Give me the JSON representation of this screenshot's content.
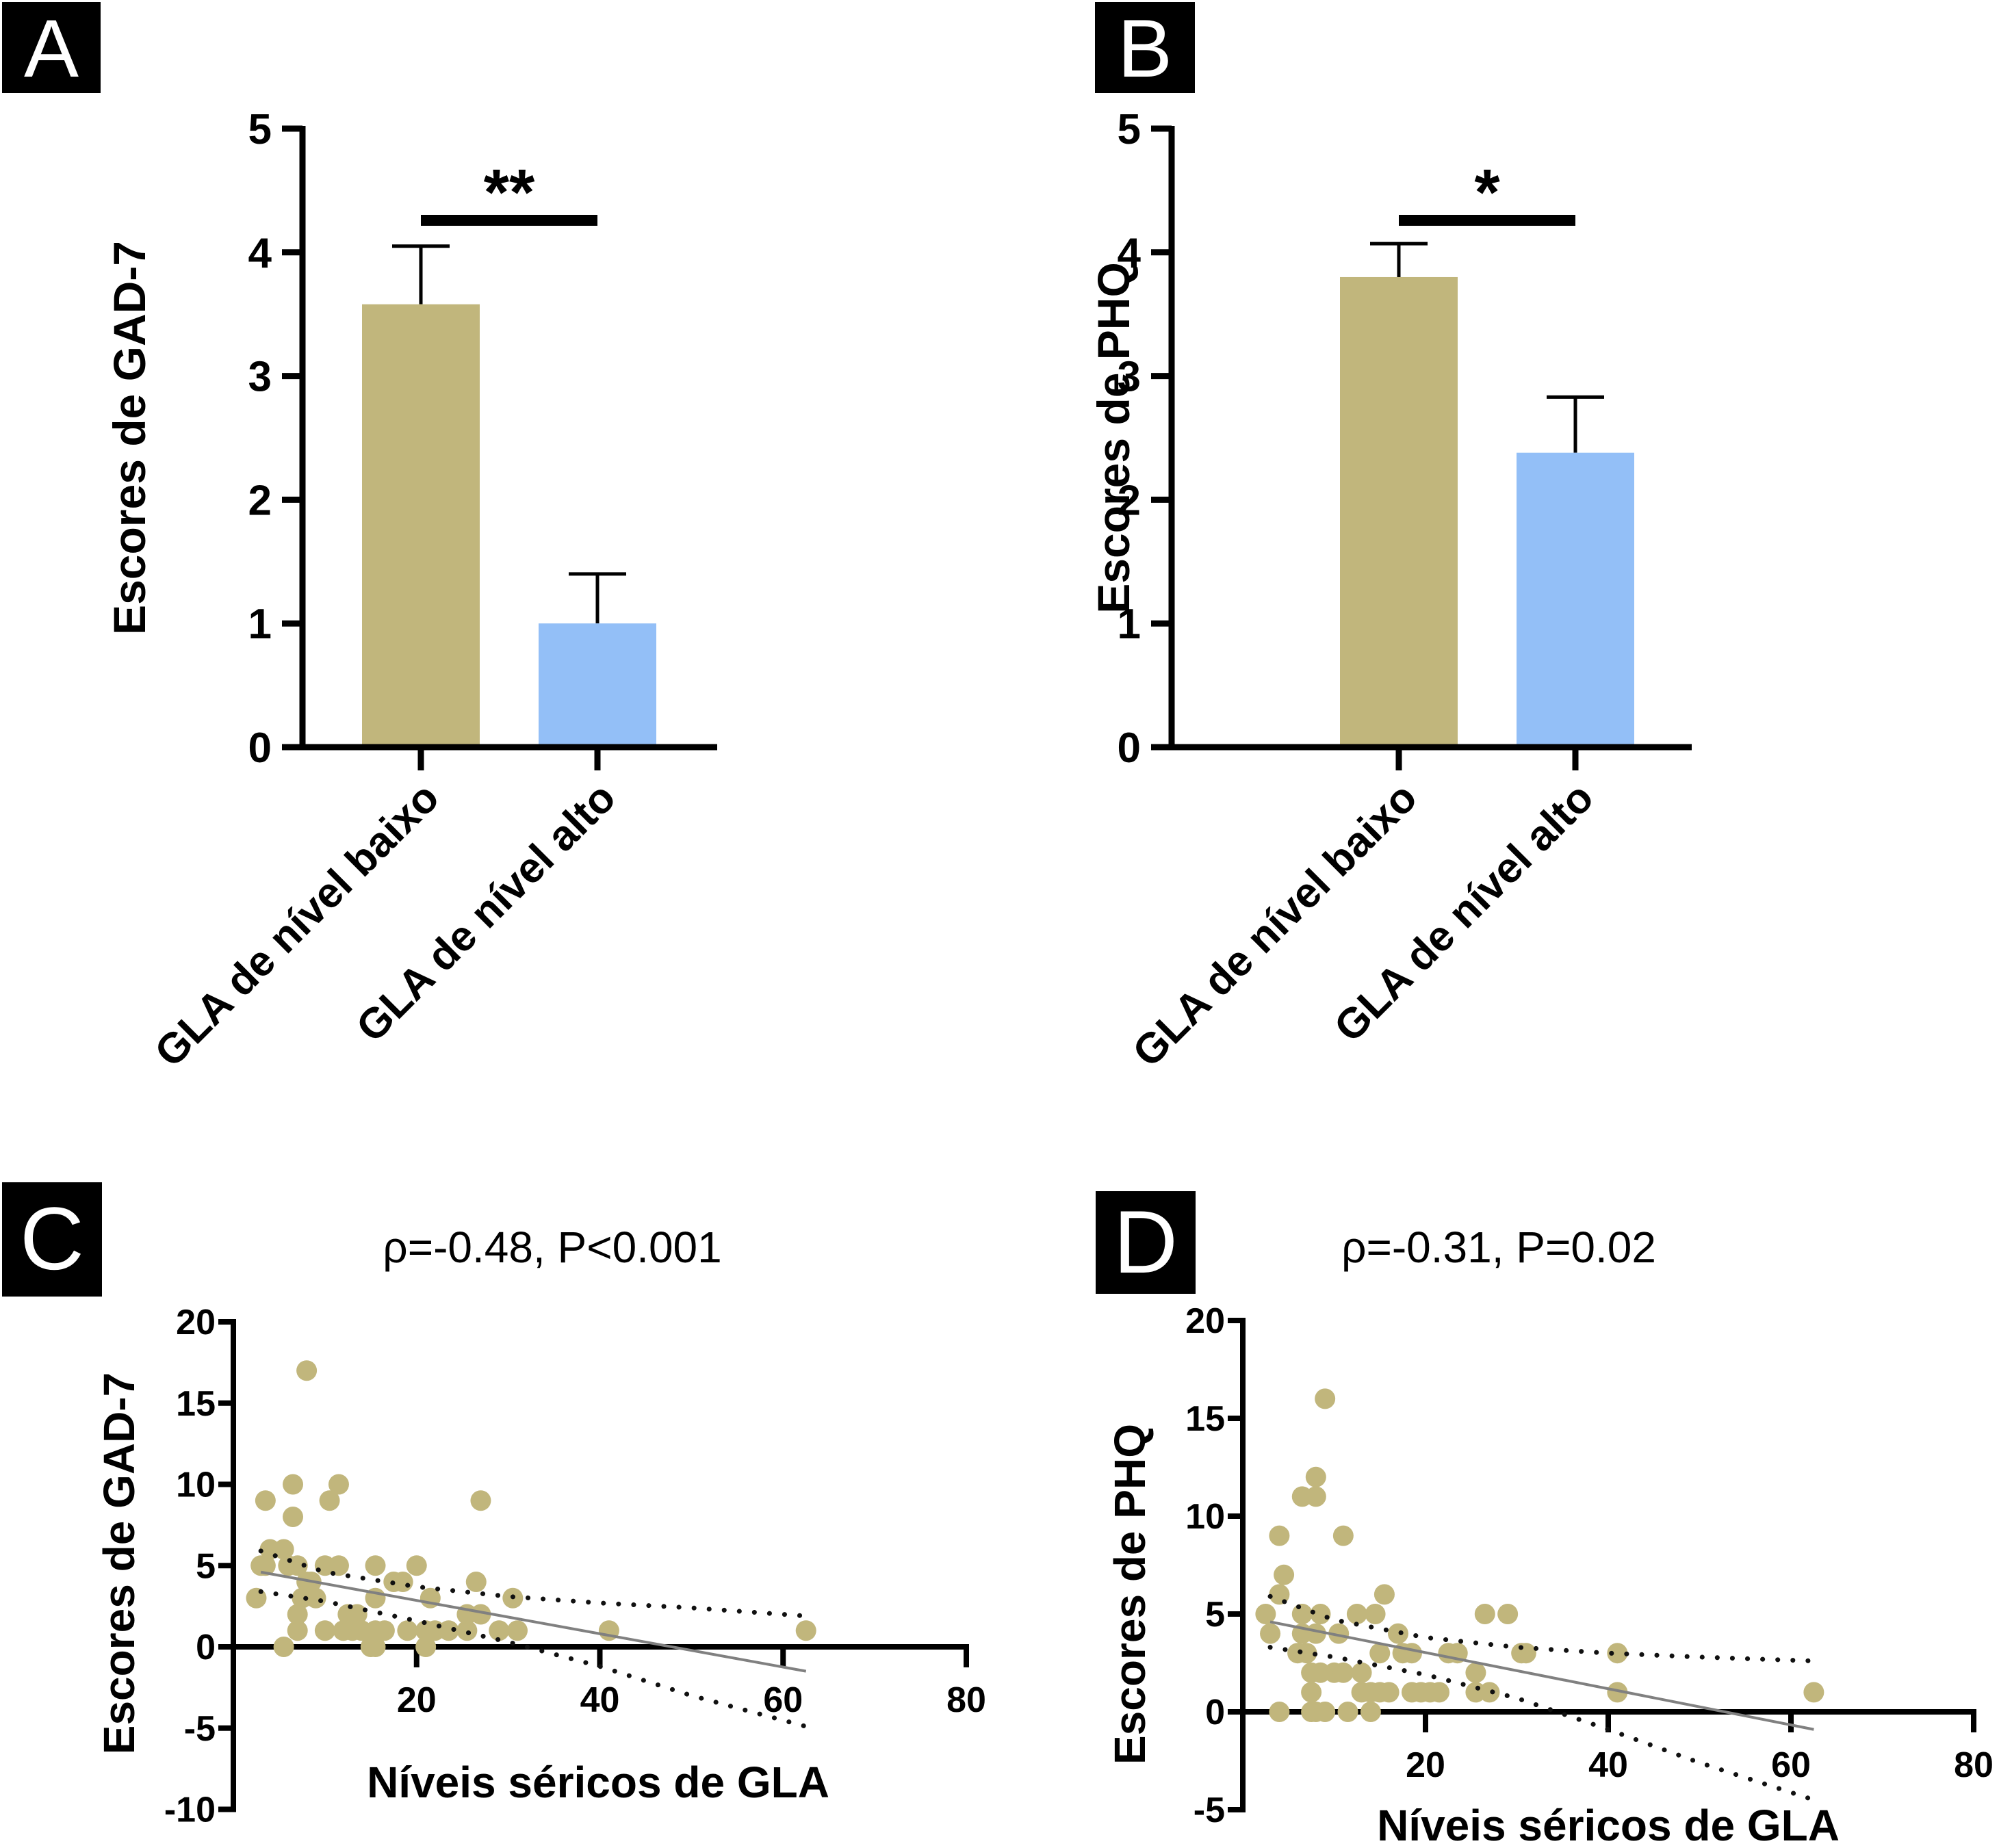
{
  "colors": {
    "low_group": "#c1b67c",
    "high_group": "#93bff7",
    "points": "#c1b67c",
    "fit_line": "#808080",
    "ci_dots": "#111111",
    "axis": "#000000"
  },
  "chart_data": [
    {
      "panel": "A",
      "type": "bar",
      "title": "",
      "ylabel": "Escores de GAD-7",
      "xlabel": "",
      "categories": [
        "GLA de nível baixo",
        "GLA de nível alto"
      ],
      "values": [
        3.58,
        1.0
      ],
      "error_upper": [
        4.05,
        1.4
      ],
      "ylim": [
        0,
        5
      ],
      "yticks": [
        "0",
        "1",
        "2",
        "3",
        "4",
        "5"
      ],
      "significance": {
        "label": "**",
        "between": [
          0,
          1
        ]
      },
      "grid": false
    },
    {
      "panel": "B",
      "type": "bar",
      "title": "",
      "ylabel": "Escores de PHQ",
      "xlabel": "",
      "categories": [
        "GLA de nível baixo",
        "GLA de nível alto"
      ],
      "values": [
        3.8,
        2.38
      ],
      "error_upper": [
        4.07,
        2.83
      ],
      "ylim": [
        0,
        5
      ],
      "yticks": [
        "0",
        "1",
        "2",
        "3",
        "4",
        "5"
      ],
      "significance": {
        "label": "*",
        "between": [
          0,
          1
        ]
      },
      "grid": false
    },
    {
      "panel": "C",
      "type": "scatter",
      "title": "ρ=-0.48, P<0.001",
      "ylabel": "Escores de GAD-7",
      "xlabel": "Níveis séricos de GLA",
      "xlim": [
        0,
        80
      ],
      "ylim": [
        -10,
        20
      ],
      "xticks": [
        "20",
        "40",
        "60",
        "80"
      ],
      "yticks": [
        "20",
        "15",
        "10",
        "5",
        "0",
        "-5",
        "-10"
      ],
      "points": [
        [
          8,
          17
        ],
        [
          6.5,
          10
        ],
        [
          11.5,
          10
        ],
        [
          3.5,
          9
        ],
        [
          10.5,
          9
        ],
        [
          27,
          9
        ],
        [
          6.5,
          8
        ],
        [
          4,
          6
        ],
        [
          5.5,
          6
        ],
        [
          3,
          5
        ],
        [
          3.5,
          5
        ],
        [
          6,
          5
        ],
        [
          7,
          5
        ],
        [
          10,
          5
        ],
        [
          11.5,
          5
        ],
        [
          15.5,
          5
        ],
        [
          20,
          5
        ],
        [
          8,
          4
        ],
        [
          17.5,
          4
        ],
        [
          18.5,
          4
        ],
        [
          26.5,
          4
        ],
        [
          8.5,
          4
        ],
        [
          2.5,
          3
        ],
        [
          7.5,
          3
        ],
        [
          9,
          3
        ],
        [
          15.5,
          3
        ],
        [
          21.5,
          3
        ],
        [
          30.5,
          3
        ],
        [
          7,
          2
        ],
        [
          12.5,
          2
        ],
        [
          13.5,
          2
        ],
        [
          25.5,
          2
        ],
        [
          27,
          2
        ],
        [
          7,
          1
        ],
        [
          10,
          1
        ],
        [
          12,
          1
        ],
        [
          13,
          1
        ],
        [
          14,
          1
        ],
        [
          15.5,
          1
        ],
        [
          16.5,
          1
        ],
        [
          19,
          1
        ],
        [
          21,
          1
        ],
        [
          22,
          1
        ],
        [
          23.5,
          1
        ],
        [
          25.5,
          1
        ],
        [
          29,
          1
        ],
        [
          31,
          1
        ],
        [
          41,
          1
        ],
        [
          62.5,
          1
        ],
        [
          5.5,
          0
        ],
        [
          15,
          0
        ],
        [
          15.5,
          0
        ],
        [
          21,
          0
        ]
      ],
      "fit_line": {
        "x": [
          3,
          62.5
        ],
        "y": [
          4.6,
          -1.5
        ]
      },
      "ci_upper": {
        "x": [
          3,
          10,
          20,
          30,
          40,
          50,
          62.5
        ],
        "y": [
          5.9,
          4.6,
          3.7,
          3.1,
          2.7,
          2.4,
          1.9
        ]
      },
      "ci_lower": {
        "x": [
          3,
          10,
          20,
          30,
          40,
          50,
          62.5
        ],
        "y": [
          3.4,
          2.8,
          1.6,
          0.3,
          -1.2,
          -3.0,
          -4.9
        ]
      },
      "grid": false
    },
    {
      "panel": "D",
      "type": "scatter",
      "title": "ρ=-0.31, P=0.02",
      "ylabel": "Escores de PHQ",
      "xlabel": "Níveis séricos de GLA",
      "xlim": [
        0,
        80
      ],
      "ylim": [
        -5,
        20
      ],
      "xticks": [
        "20",
        "40",
        "60",
        "80"
      ],
      "yticks": [
        "20",
        "15",
        "10",
        "5",
        "0",
        "-5"
      ],
      "points": [
        [
          9,
          16
        ],
        [
          8,
          12
        ],
        [
          6.5,
          11
        ],
        [
          8,
          11
        ],
        [
          4,
          9
        ],
        [
          11,
          9
        ],
        [
          4.5,
          7
        ],
        [
          4,
          6
        ],
        [
          15.5,
          6
        ],
        [
          2.5,
          5
        ],
        [
          6.5,
          5
        ],
        [
          8.5,
          5
        ],
        [
          12.5,
          5
        ],
        [
          14.5,
          5
        ],
        [
          26.5,
          5
        ],
        [
          29,
          5
        ],
        [
          3,
          4
        ],
        [
          6.5,
          4
        ],
        [
          8,
          4
        ],
        [
          10.5,
          4
        ],
        [
          17,
          4
        ],
        [
          6,
          3
        ],
        [
          7,
          3
        ],
        [
          15,
          3
        ],
        [
          17.5,
          3
        ],
        [
          18.5,
          3
        ],
        [
          22.5,
          3
        ],
        [
          23.5,
          3
        ],
        [
          30.5,
          3
        ],
        [
          31,
          3
        ],
        [
          41,
          3
        ],
        [
          7.5,
          2
        ],
        [
          8.5,
          2
        ],
        [
          10,
          2
        ],
        [
          11,
          2
        ],
        [
          13,
          2
        ],
        [
          25.5,
          2
        ],
        [
          7.5,
          1
        ],
        [
          13,
          1
        ],
        [
          14,
          1
        ],
        [
          15,
          1
        ],
        [
          16,
          1
        ],
        [
          18.5,
          1
        ],
        [
          19.5,
          1
        ],
        [
          20.5,
          1
        ],
        [
          21.5,
          1
        ],
        [
          25.5,
          1
        ],
        [
          27,
          1
        ],
        [
          41,
          1
        ],
        [
          62.5,
          1
        ],
        [
          4,
          0
        ],
        [
          7.5,
          0
        ],
        [
          8,
          0
        ],
        [
          9,
          0
        ],
        [
          11.5,
          0
        ],
        [
          14,
          0
        ]
      ],
      "fit_line": {
        "x": [
          3,
          62.5
        ],
        "y": [
          4.6,
          -0.9
        ]
      },
      "ci_upper": {
        "x": [
          3,
          10,
          20,
          30,
          40,
          50,
          62.5
        ],
        "y": [
          5.9,
          4.7,
          3.8,
          3.3,
          3.0,
          2.8,
          2.6
        ]
      },
      "ci_lower": {
        "x": [
          3,
          10,
          20,
          30,
          40,
          50,
          62.5
        ],
        "y": [
          3.3,
          2.8,
          1.9,
          0.7,
          -0.9,
          -2.6,
          -4.5
        ]
      },
      "grid": false
    }
  ]
}
